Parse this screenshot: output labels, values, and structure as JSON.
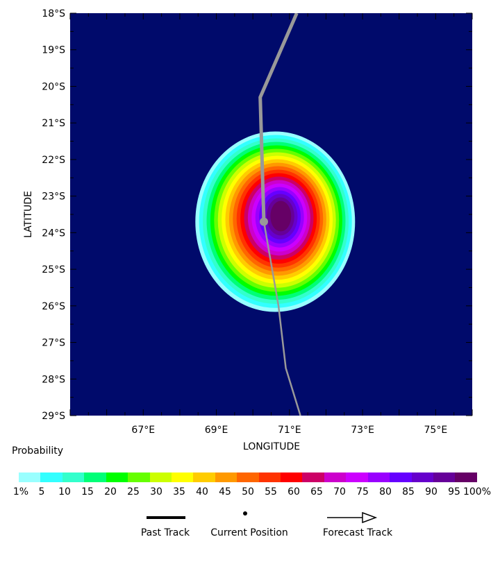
{
  "map": {
    "background_color": "#000a6b",
    "lat_labels": [
      "18°S",
      "19°S",
      "20°S",
      "21°S",
      "22°S",
      "23°S",
      "24°S",
      "25°S",
      "26°S",
      "27°S",
      "28°S",
      "29°S"
    ],
    "lon_labels": [
      "67°E",
      "69°E",
      "71°E",
      "73°E",
      "75°E"
    ],
    "lat_values": [
      -18,
      -19,
      -20,
      -21,
      -22,
      -23,
      -24,
      -25,
      -26,
      -27,
      -28,
      -29
    ],
    "lon_values": [
      67,
      69,
      71,
      73,
      75
    ],
    "lon_range": [
      65,
      76
    ],
    "lat_range": [
      -29,
      -18
    ],
    "xlabel": "LONGITUDE",
    "ylabel": "LATITUDE"
  },
  "probability_field": {
    "center": [
      70.8,
      -23.7
    ],
    "outer_extent_lon": [
      66.5,
      72.6
    ],
    "outer_extent_lat": [
      -26.1,
      -21.2
    ],
    "icon": "probability-blob"
  },
  "tracks": {
    "past_track": [
      [
        71.2,
        -18.0
      ],
      [
        70.2,
        -20.3
      ],
      [
        70.3,
        -23.7
      ]
    ],
    "forecast_track": [
      [
        70.3,
        -23.7
      ],
      [
        70.7,
        -26.0
      ],
      [
        70.9,
        -27.7
      ],
      [
        71.3,
        -29.0
      ]
    ],
    "current_position": [
      70.3,
      -23.7
    ],
    "track_color": "#999999"
  },
  "colorbar": {
    "title": "Probability",
    "colors": [
      "#99ffff",
      "#33ffff",
      "#33ffcc",
      "#00ff77",
      "#00ff00",
      "#66ff00",
      "#ccff00",
      "#ffff00",
      "#ffcc00",
      "#ff9900",
      "#ff6600",
      "#ff3300",
      "#ff0000",
      "#cc0066",
      "#cc00cc",
      "#cc00ff",
      "#9900ff",
      "#6600ff",
      "#6600cc",
      "#660099",
      "#660066"
    ],
    "labels": [
      "1%",
      "5",
      "10",
      "15",
      "20",
      "25",
      "30",
      "35",
      "40",
      "45",
      "50",
      "55",
      "60",
      "65",
      "70",
      "75",
      "80",
      "85",
      "90",
      "95",
      "100%"
    ]
  },
  "legend": {
    "past_track": "Past Track",
    "current_position": "Current Position",
    "forecast_track": "Forecast Track"
  }
}
